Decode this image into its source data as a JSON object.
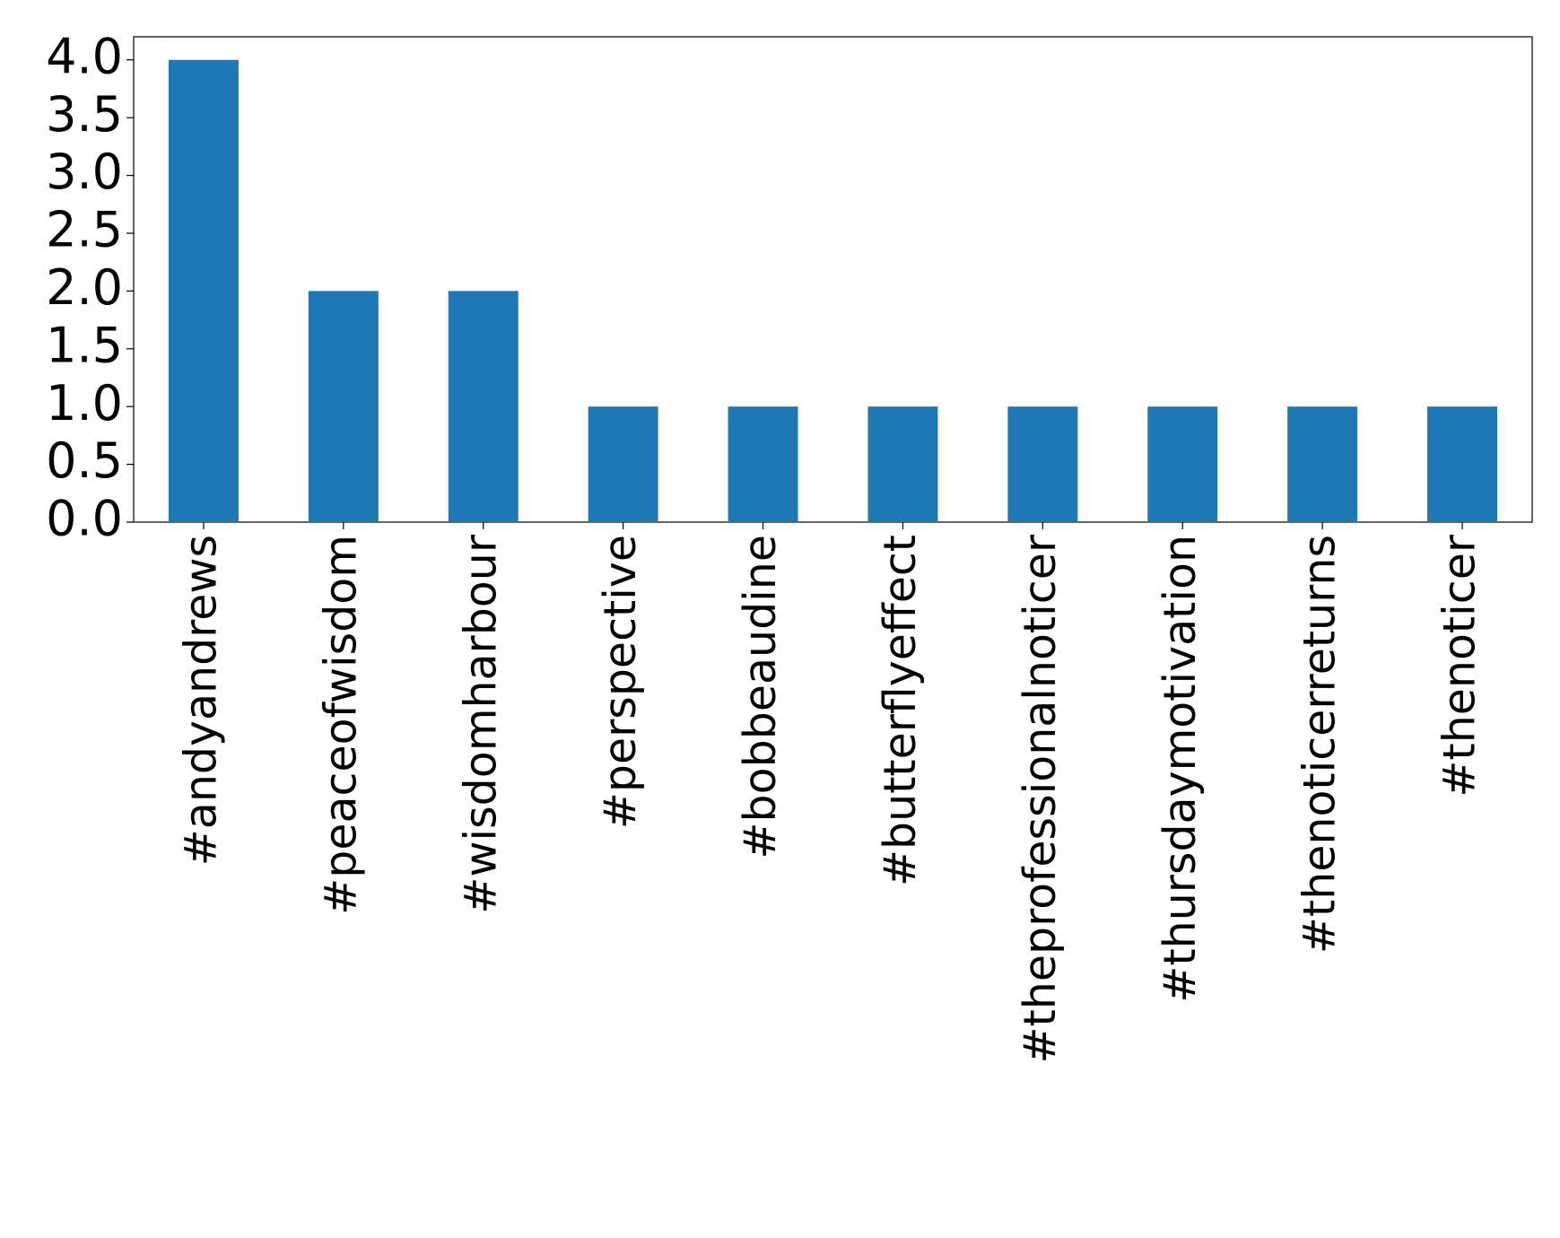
{
  "chart_data": {
    "type": "bar",
    "categories": [
      "#andyandrews",
      "#peaceofwisdom",
      "#wisdomharbour",
      "#perspective",
      "#bobbeaudine",
      "#butterflyeffect",
      "#theprofessionalnoticer",
      "#thursdaymotivation",
      "#thenoticerreturns",
      "#thenoticer"
    ],
    "values": [
      4,
      2,
      2,
      1,
      1,
      1,
      1,
      1,
      1,
      1
    ],
    "color": "#1f77b4",
    "ylim": [
      0,
      4.2
    ],
    "yticks": [
      {
        "value": 0,
        "label": "0.0"
      },
      {
        "value": 0.5,
        "label": "0.5"
      },
      {
        "value": 1,
        "label": "1.0"
      },
      {
        "value": 1.5,
        "label": "1.5"
      },
      {
        "value": 2,
        "label": "2.0"
      },
      {
        "value": 2.5,
        "label": "2.5"
      },
      {
        "value": 3,
        "label": "3.0"
      },
      {
        "value": 3.5,
        "label": "3.5"
      },
      {
        "value": 4,
        "label": "4.0"
      }
    ],
    "grid": false
  }
}
